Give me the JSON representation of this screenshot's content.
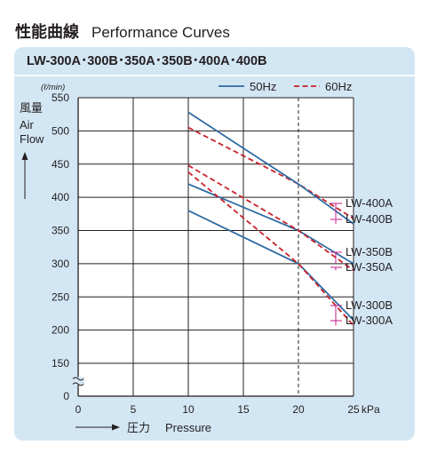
{
  "header": {
    "title_ja": "性能曲線",
    "title_en": "Performance Curves"
  },
  "models_title": "LW-300A･300B･350A･350B･400A･400B",
  "chart_data": {
    "type": "line",
    "unit_flow": "(ℓ/min)",
    "ylabel_ja": "風量",
    "ylabel_en": [
      "Air",
      "Flow"
    ],
    "xlabel_ja": "圧力",
    "xlabel_en": "Pressure",
    "xunit": "kPa",
    "xticks": [
      0,
      5,
      10,
      15,
      20,
      25
    ],
    "yticks": [
      0,
      150,
      200,
      250,
      300,
      350,
      400,
      450,
      500,
      550
    ],
    "xlim": [
      0,
      25
    ],
    "ylim": [
      0,
      550
    ],
    "y_axis_break": "between 0 and 150",
    "grid": true,
    "reference_line": {
      "x": 20,
      "style": "dashed"
    },
    "legend": {
      "position": "top-right",
      "items": [
        {
          "label": "50Hz",
          "color": "#2e6ba3",
          "style": "solid"
        },
        {
          "label": "60Hz",
          "color": "#c8232c",
          "style": "dashed"
        }
      ]
    },
    "series": [
      {
        "name": "LW-400A",
        "frequency": "60Hz",
        "color": "#c8232c",
        "style": "dashed",
        "x": [
          10,
          20,
          25
        ],
        "y": [
          505,
          420,
          368
        ]
      },
      {
        "name": "LW-400B",
        "frequency": "50Hz",
        "color": "#2e6ba3",
        "style": "solid",
        "x": [
          10,
          20,
          25
        ],
        "y": [
          528,
          420,
          360
        ]
      },
      {
        "name": "LW-350B",
        "frequency": "50Hz",
        "color": "#2e6ba3",
        "style": "solid",
        "x": [
          10,
          20,
          25
        ],
        "y": [
          420,
          350,
          300
        ]
      },
      {
        "name": "LW-350A",
        "frequency": "60Hz",
        "color": "#c8232c",
        "style": "dashed",
        "x": [
          10,
          20,
          25
        ],
        "y": [
          448,
          350,
          290
        ]
      },
      {
        "name": "LW-300B",
        "frequency": "50Hz",
        "color": "#2e6ba3",
        "style": "solid",
        "x": [
          10,
          20,
          25
        ],
        "y": [
          380,
          300,
          215
        ]
      },
      {
        "name": "LW-300A",
        "frequency": "60Hz",
        "color": "#c8232c",
        "style": "dashed",
        "x": [
          10,
          20,
          25
        ],
        "y": [
          438,
          300,
          207
        ]
      }
    ],
    "series_labels": [
      {
        "text": "LW-400A",
        "series": "LW-400A"
      },
      {
        "text": "LW-400B",
        "series": "LW-400B"
      },
      {
        "text": "LW-350B",
        "series": "LW-350B"
      },
      {
        "text": "LW-350A",
        "series": "LW-350A"
      },
      {
        "text": "LW-300B",
        "series": "LW-300B"
      },
      {
        "text": "LW-300A",
        "series": "LW-300A"
      }
    ],
    "label_pointer_color": "#c4198a"
  }
}
